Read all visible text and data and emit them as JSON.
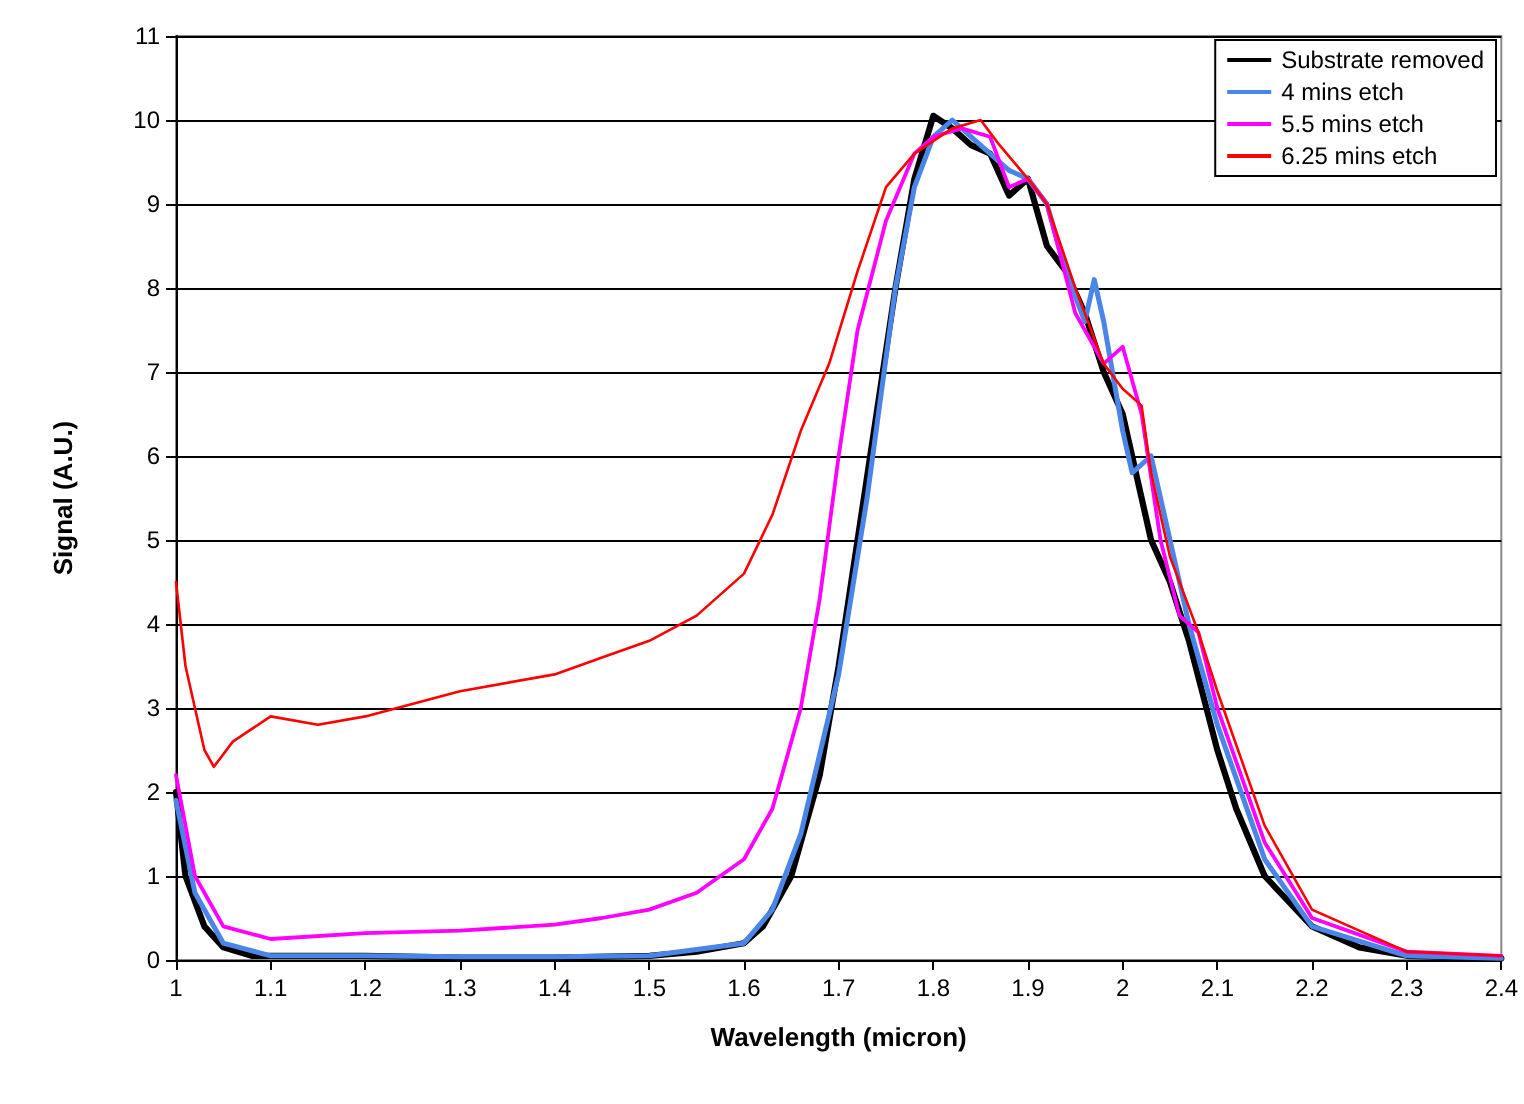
{
  "chart_data": {
    "type": "line",
    "xlabel": "Wavelength (micron)",
    "ylabel": "Signal (A.U.)",
    "xlim": [
      1,
      2.4
    ],
    "xticks": [
      1,
      1.1,
      1.2,
      1.3,
      1.4,
      1.5,
      1.6,
      1.7,
      1.8,
      1.9,
      2,
      2.1,
      2.2,
      2.3,
      2.4
    ],
    "ylim": [
      0,
      11
    ],
    "yticks": [
      0,
      1,
      2,
      3,
      4,
      5,
      6,
      7,
      8,
      9,
      10,
      11
    ],
    "grid": "y",
    "legend": "top right",
    "marker": "none",
    "line_style": "solid",
    "series": [
      {
        "name": "Substrate removed",
        "color": "#000000",
        "x": [
          1,
          1.01,
          1.03,
          1.05,
          1.08,
          1.1,
          1.2,
          1.3,
          1.4,
          1.5,
          1.55,
          1.6,
          1.62,
          1.65,
          1.68,
          1.7,
          1.72,
          1.74,
          1.76,
          1.78,
          1.8,
          1.82,
          1.84,
          1.86,
          1.88,
          1.9,
          1.92,
          1.94,
          1.96,
          1.98,
          2,
          2.02,
          2.03,
          2.05,
          2.07,
          2.1,
          2.12,
          2.15,
          2.2,
          2.25,
          2.3,
          2.4
        ],
        "values": [
          2,
          1,
          0.4,
          0.15,
          0.05,
          0.05,
          0.05,
          0.03,
          0.03,
          0.05,
          0.1,
          0.2,
          0.4,
          1,
          2.2,
          3.5,
          5,
          6.5,
          8,
          9.3,
          10.05,
          9.9,
          9.7,
          9.6,
          9.1,
          9.3,
          8.5,
          8.2,
          7.7,
          7,
          6.5,
          5.5,
          5,
          4.5,
          3.8,
          2.5,
          1.8,
          1,
          0.4,
          0.15,
          0.05,
          0.02
        ]
      },
      {
        "name": "4 mins etch",
        "color": "#4a86e8",
        "x": [
          1,
          1.02,
          1.05,
          1.1,
          1.2,
          1.3,
          1.4,
          1.5,
          1.6,
          1.63,
          1.66,
          1.7,
          1.73,
          1.76,
          1.78,
          1.8,
          1.82,
          1.84,
          1.86,
          1.88,
          1.9,
          1.92,
          1.94,
          1.96,
          1.97,
          1.98,
          2,
          2.01,
          2.03,
          2.05,
          2.07,
          2.1,
          2.15,
          2.2,
          2.3,
          2.4
        ],
        "values": [
          1.9,
          0.8,
          0.2,
          0.05,
          0.05,
          0.04,
          0.04,
          0.05,
          0.2,
          0.6,
          1.5,
          3.4,
          5.5,
          8,
          9.2,
          9.8,
          10,
          9.8,
          9.6,
          9.4,
          9.3,
          9,
          8.2,
          7.6,
          8.1,
          7.6,
          6.3,
          5.8,
          6,
          5,
          4,
          2.8,
          1.2,
          0.4,
          0.05,
          0.02
        ]
      },
      {
        "name": "5.5 mins etch",
        "color": "#ff00ff",
        "x": [
          1,
          1.02,
          1.05,
          1.1,
          1.2,
          1.3,
          1.4,
          1.45,
          1.5,
          1.55,
          1.6,
          1.63,
          1.66,
          1.68,
          1.7,
          1.72,
          1.75,
          1.78,
          1.8,
          1.83,
          1.86,
          1.88,
          1.9,
          1.92,
          1.95,
          1.98,
          2,
          2.02,
          2.04,
          2.06,
          2.08,
          2.1,
          2.15,
          2.2,
          2.3,
          2.4
        ],
        "values": [
          2.2,
          1,
          0.4,
          0.25,
          0.32,
          0.35,
          0.42,
          0.5,
          0.6,
          0.8,
          1.2,
          1.8,
          3,
          4.3,
          6,
          7.5,
          8.8,
          9.6,
          9.8,
          9.9,
          9.8,
          9.2,
          9.3,
          9,
          7.7,
          7.1,
          7.3,
          6.5,
          5,
          4.1,
          3.9,
          3,
          1.4,
          0.5,
          0.1,
          0.05
        ]
      },
      {
        "name": "6.25 mins etch",
        "color": "#ff0000",
        "x": [
          1,
          1.01,
          1.03,
          1.04,
          1.06,
          1.1,
          1.15,
          1.2,
          1.3,
          1.4,
          1.45,
          1.5,
          1.55,
          1.6,
          1.63,
          1.66,
          1.69,
          1.72,
          1.75,
          1.78,
          1.82,
          1.85,
          1.87,
          1.9,
          1.92,
          1.95,
          1.98,
          2,
          2.02,
          2.03,
          2.05,
          2.08,
          2.1,
          2.15,
          2.2,
          2.3,
          2.4
        ],
        "values": [
          4.5,
          3.5,
          2.5,
          2.3,
          2.6,
          2.9,
          2.8,
          2.9,
          3.2,
          3.4,
          3.6,
          3.8,
          4.1,
          4.6,
          5.3,
          6.3,
          7.1,
          8.2,
          9.2,
          9.6,
          9.9,
          10,
          9.7,
          9.3,
          9,
          8,
          7.1,
          6.8,
          6.6,
          5.8,
          4.8,
          3.9,
          3.2,
          1.6,
          0.6,
          0.1,
          0.05
        ]
      }
    ]
  }
}
